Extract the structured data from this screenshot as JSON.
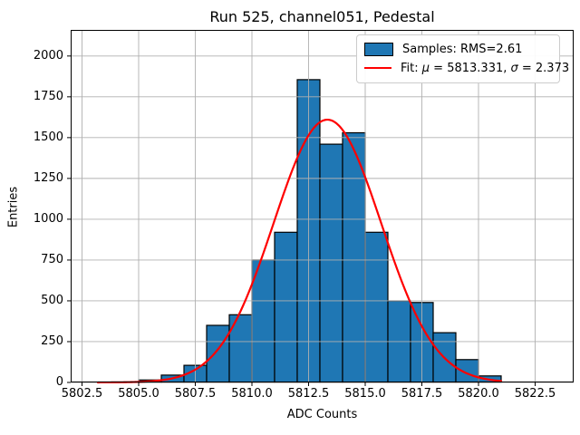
{
  "colors": {
    "bar_fill": "#1f77b4",
    "bar_edge": "#000000",
    "fit_line": "#ff0000",
    "grid": "#b0b0b0",
    "spine": "#000000"
  },
  "legend": {
    "samples_label": "Samples: RMS=2.61",
    "fit_prefix": "Fit: ",
    "fit_mu_symbol": "μ",
    "fit_mu_value": " = 5813.331, ",
    "fit_sigma_symbol": "σ",
    "fit_sigma_value": " = 2.373"
  },
  "chart_data": {
    "type": "bar",
    "title": "Run 525, channel051, Pedestal",
    "xlabel": "ADC Counts",
    "ylabel": "Entries",
    "legend_entries": [
      "Samples: RMS=2.61",
      "Fit: μ = 5813.331, σ = 2.373"
    ],
    "legend_position": "upper right",
    "grid": true,
    "bin_width": 1,
    "bin_left_edges": [
      5805,
      5806,
      5807,
      5808,
      5809,
      5810,
      5811,
      5812,
      5813,
      5814,
      5815,
      5816,
      5817,
      5818,
      5819,
      5820
    ],
    "values": [
      15,
      45,
      105,
      350,
      415,
      750,
      920,
      1855,
      1460,
      1530,
      920,
      500,
      490,
      305,
      140,
      40
    ],
    "rms": 2.61,
    "fit": {
      "mu": 5813.331,
      "sigma": 2.373,
      "amplitude": 1610,
      "range": [
        5803.2,
        5821.0
      ]
    },
    "xlim": [
      5802.0,
      5824.2
    ],
    "ylim": [
      0,
      2160
    ],
    "xticks": [
      5802.5,
      5805.0,
      5807.5,
      5810.0,
      5812.5,
      5815.0,
      5817.5,
      5820.0,
      5822.5
    ],
    "xtick_labels": [
      "5802.5",
      "5805.0",
      "5807.5",
      "5810.0",
      "5812.5",
      "5815.0",
      "5817.5",
      "5820.0",
      "5822.5"
    ],
    "yticks": [
      0,
      250,
      500,
      750,
      1000,
      1250,
      1500,
      1750,
      2000
    ],
    "ytick_labels": [
      "0",
      "250",
      "500",
      "750",
      "1000",
      "1250",
      "1500",
      "1750",
      "2000"
    ]
  }
}
